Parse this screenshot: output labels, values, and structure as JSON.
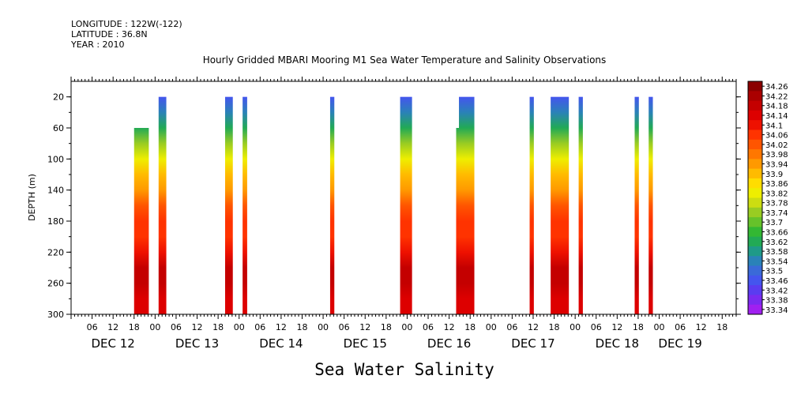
{
  "header": {
    "longitude": "LONGITUDE : 122W(-122)",
    "latitude": "LATITUDE : 36.8N",
    "year": "YEAR : 2010"
  },
  "chart_data": {
    "type": "heatmap",
    "title": "Hourly Gridded MBARI Mooring M1 Sea Water Temperature and Salinity Observations",
    "xlabel": "Sea Water Salinity",
    "ylabel": "DEPTH (m)",
    "x_range_hours_from_dec12_00": [
      0,
      190
    ],
    "y_range_m": [
      300,
      0
    ],
    "y_ticks": [
      "20",
      "60",
      "100",
      "140",
      "180",
      "220",
      "260",
      "300"
    ],
    "y_tick_values": [
      20,
      60,
      100,
      140,
      180,
      220,
      260,
      300
    ],
    "x_hour_ticks": [
      {
        "h": 6,
        "label": "06"
      },
      {
        "h": 12,
        "label": "12"
      },
      {
        "h": 18,
        "label": "18"
      },
      {
        "h": 24,
        "label": "00"
      },
      {
        "h": 30,
        "label": "06"
      },
      {
        "h": 36,
        "label": "12"
      },
      {
        "h": 42,
        "label": "18"
      },
      {
        "h": 48,
        "label": "00"
      },
      {
        "h": 54,
        "label": "06"
      },
      {
        "h": 60,
        "label": "12"
      },
      {
        "h": 66,
        "label": "18"
      },
      {
        "h": 72,
        "label": "00"
      },
      {
        "h": 78,
        "label": "06"
      },
      {
        "h": 84,
        "label": "12"
      },
      {
        "h": 90,
        "label": "18"
      },
      {
        "h": 96,
        "label": "00"
      },
      {
        "h": 102,
        "label": "06"
      },
      {
        "h": 108,
        "label": "12"
      },
      {
        "h": 114,
        "label": "18"
      },
      {
        "h": 120,
        "label": "00"
      },
      {
        "h": 126,
        "label": "06"
      },
      {
        "h": 132,
        "label": "12"
      },
      {
        "h": 138,
        "label": "18"
      },
      {
        "h": 144,
        "label": "00"
      },
      {
        "h": 150,
        "label": "06"
      },
      {
        "h": 156,
        "label": "12"
      },
      {
        "h": 162,
        "label": "18"
      },
      {
        "h": 168,
        "label": "00"
      },
      {
        "h": 174,
        "label": "06"
      },
      {
        "h": 180,
        "label": "12"
      },
      {
        "h": 186,
        "label": "18"
      },
      {
        "h": 192,
        "label": "00"
      }
    ],
    "x_day_labels": [
      {
        "h": 12,
        "label": "DEC 12"
      },
      {
        "h": 36,
        "label": "DEC 13"
      },
      {
        "h": 60,
        "label": "DEC 14"
      },
      {
        "h": 84,
        "label": "DEC 15"
      },
      {
        "h": 108,
        "label": "DEC 16"
      },
      {
        "h": 132,
        "label": "DEC 17"
      },
      {
        "h": 156,
        "label": "DEC 18"
      },
      {
        "h": 174,
        "label": "DEC 19"
      }
    ],
    "colorbar": {
      "labels": [
        "34.26",
        "34.22",
        "34.18",
        "34.14",
        "34.1",
        "34.06",
        "34.02",
        "33.98",
        "33.94",
        "33.9",
        "33.86",
        "33.82",
        "33.78",
        "33.74",
        "33.7",
        "33.66",
        "33.62",
        "33.58",
        "33.54",
        "33.5",
        "33.46",
        "33.42",
        "33.38",
        "33.34"
      ],
      "min": 33.34,
      "max": 34.28
    },
    "columns_hours": [
      {
        "start": 18,
        "end": 22.2,
        "top_depth": 60
      },
      {
        "start": 25,
        "end": 27.2,
        "top_depth": 20
      },
      {
        "start": 44,
        "end": 46.2,
        "top_depth": 20
      },
      {
        "start": 49,
        "end": 50.3,
        "top_depth": 20
      },
      {
        "start": 74,
        "end": 75.2,
        "top_depth": 20
      },
      {
        "start": 94,
        "end": 97.4,
        "top_depth": 20
      },
      {
        "start": 110,
        "end": 110.8,
        "top_depth": 60
      },
      {
        "start": 110.8,
        "end": 115.2,
        "top_depth": 20
      },
      {
        "start": 131,
        "end": 132.2,
        "top_depth": 20
      },
      {
        "start": 137,
        "end": 142.2,
        "top_depth": 20
      },
      {
        "start": 145,
        "end": 146.2,
        "top_depth": 20
      },
      {
        "start": 161,
        "end": 162.2,
        "top_depth": 20
      },
      {
        "start": 165,
        "end": 166.2,
        "top_depth": 20
      }
    ],
    "salinity_profile": {
      "depths_m": [
        20,
        40,
        60,
        80,
        100,
        120,
        140,
        160,
        180,
        200,
        220,
        240,
        260,
        280,
        300
      ],
      "salinity": [
        33.48,
        33.54,
        33.64,
        33.74,
        33.82,
        33.9,
        33.96,
        34.04,
        34.06,
        34.08,
        34.12,
        34.18,
        34.2,
        34.16,
        34.14
      ]
    }
  }
}
